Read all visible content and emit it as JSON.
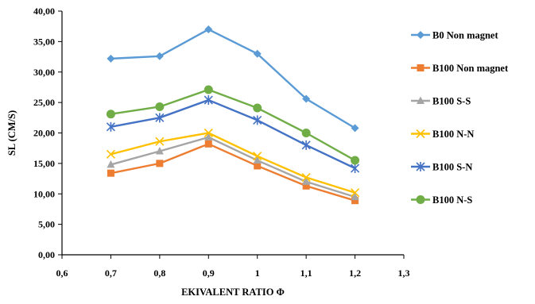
{
  "chart_data": {
    "type": "line",
    "title": "",
    "xlabel": "EKIVALENT RATIO Φ",
    "ylabel": "SL (CM/S)",
    "xlim": [
      0.6,
      1.3
    ],
    "ylim": [
      0,
      40
    ],
    "x_ticks": [
      "0,6",
      "0,7",
      "0,8",
      "0,9",
      "1",
      "1,1",
      "1,2",
      "1,3"
    ],
    "x_tick_values": [
      0.6,
      0.7,
      0.8,
      0.9,
      1.0,
      1.1,
      1.2,
      1.3
    ],
    "y_ticks": [
      "0,00",
      "5,00",
      "10,00",
      "15,00",
      "20,00",
      "25,00",
      "30,00",
      "35,00",
      "40,00"
    ],
    "y_tick_values": [
      0,
      5,
      10,
      15,
      20,
      25,
      30,
      35,
      40
    ],
    "grid": false,
    "legend_position": "right",
    "x": [
      0.7,
      0.8,
      0.9,
      1.0,
      1.1,
      1.2
    ],
    "series": [
      {
        "name": "B0 Non magnet",
        "color": "#5b9bd5",
        "marker": "diamond",
        "values": [
          32.2,
          32.6,
          37.0,
          33.0,
          25.6,
          20.8
        ]
      },
      {
        "name": "B100 Non magnet",
        "color": "#ed7d31",
        "marker": "square",
        "values": [
          13.4,
          15.0,
          18.2,
          14.6,
          11.3,
          8.9
        ]
      },
      {
        "name": "B100 S-S",
        "color": "#a5a5a5",
        "marker": "triangle",
        "values": [
          14.8,
          17.0,
          19.3,
          15.5,
          12.0,
          9.5
        ]
      },
      {
        "name": "B100 N-N",
        "color": "#ffc000",
        "marker": "x",
        "values": [
          16.5,
          18.6,
          20.0,
          16.2,
          12.7,
          10.2
        ]
      },
      {
        "name": "B100 S-N",
        "color": "#4472c4",
        "marker": "star",
        "values": [
          21.0,
          22.5,
          25.4,
          22.1,
          18.0,
          14.2
        ]
      },
      {
        "name": "B100 N-S",
        "color": "#70ad47",
        "marker": "circle",
        "values": [
          23.1,
          24.3,
          27.1,
          24.1,
          20.0,
          15.5
        ]
      }
    ]
  }
}
